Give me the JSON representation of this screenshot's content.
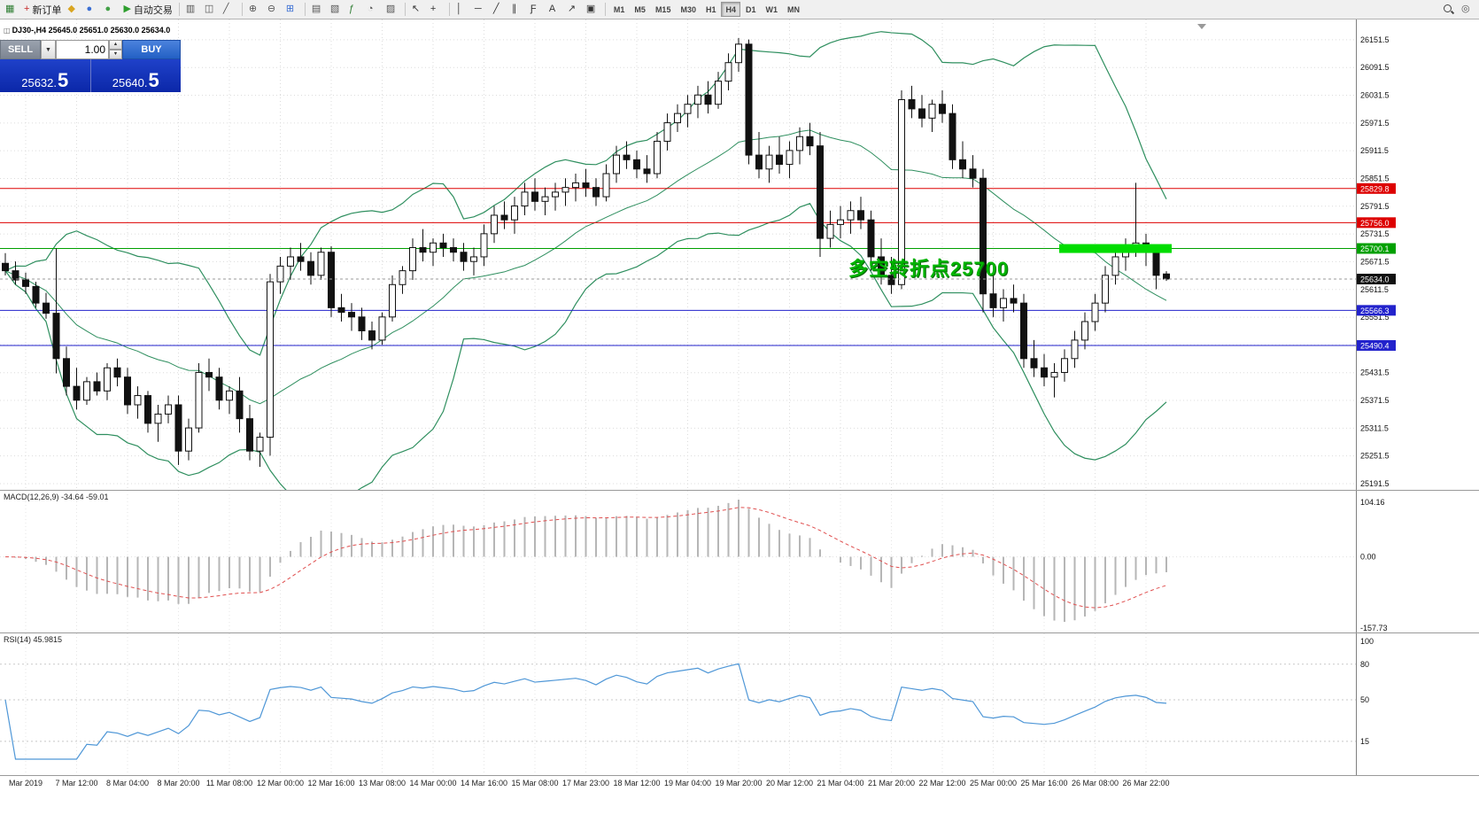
{
  "toolbar": {
    "items": [
      {
        "type": "icon",
        "name": "new-chart-icon",
        "glyph": "▦",
        "color": "#2e7d32"
      },
      {
        "type": "button",
        "name": "new-order-button",
        "glyph": "+",
        "color": "#c62828",
        "label": "新订单"
      },
      {
        "type": "icon",
        "name": "profiles-icon",
        "glyph": "◆",
        "color": "#d9a521"
      },
      {
        "type": "icon",
        "name": "accounts-icon",
        "glyph": "●",
        "color": "#3b6fd4"
      },
      {
        "type": "icon",
        "name": "community-icon",
        "glyph": "●",
        "color": "#43a047"
      },
      {
        "type": "button",
        "name": "autotrade-button",
        "glyph": "▶",
        "color": "#2e9e2e",
        "label": "自动交易"
      },
      {
        "type": "sep"
      },
      {
        "type": "icon",
        "name": "bar-chart-icon",
        "glyph": "▥",
        "color": "#555555"
      },
      {
        "type": "icon",
        "name": "candlestick-chart-icon",
        "glyph": "◫",
        "color": "#555555"
      },
      {
        "type": "icon",
        "name": "line-chart-icon",
        "glyph": "╱",
        "color": "#555555"
      },
      {
        "type": "sep"
      },
      {
        "type": "icon",
        "name": "zoom-in-icon",
        "glyph": "⊕",
        "color": "#555555"
      },
      {
        "type": "icon",
        "name": "zoom-out-icon",
        "glyph": "⊖",
        "color": "#555555"
      },
      {
        "type": "icon",
        "name": "tile-windows-icon",
        "glyph": "⊞",
        "color": "#3b6fd4"
      },
      {
        "type": "sep"
      },
      {
        "type": "icon",
        "name": "arrange-windows-icon",
        "glyph": "▤",
        "color": "#555555"
      },
      {
        "type": "icon",
        "name": "cascade-windows-icon",
        "glyph": "▧",
        "color": "#555555"
      },
      {
        "type": "icon",
        "name": "indicators-icon",
        "glyph": "ƒ",
        "color": "#2e7d32"
      },
      {
        "type": "icon",
        "name": "periods-icon",
        "glyph": "◔",
        "color": "#555555"
      },
      {
        "type": "icon",
        "name": "templates-icon",
        "glyph": "▨",
        "color": "#555555"
      },
      {
        "type": "sep"
      },
      {
        "type": "icon",
        "name": "cursor-icon",
        "glyph": "↖",
        "color": "#333333"
      },
      {
        "type": "icon",
        "name": "crosshair-icon",
        "glyph": "+",
        "color": "#333333"
      },
      {
        "type": "sep"
      },
      {
        "type": "icon",
        "name": "vertical-line-icon",
        "glyph": "│",
        "color": "#333333"
      },
      {
        "type": "icon",
        "name": "horizontal-line-icon",
        "glyph": "─",
        "color": "#333333"
      },
      {
        "type": "icon",
        "name": "trendline-icon",
        "glyph": "╱",
        "color": "#333333"
      },
      {
        "type": "icon",
        "name": "channel-icon",
        "glyph": "∥",
        "color": "#333333"
      },
      {
        "type": "icon",
        "name": "fibonacci-icon",
        "glyph": "Ƒ",
        "color": "#333333"
      },
      {
        "type": "icon",
        "name": "text-tool-icon",
        "glyph": "A",
        "color": "#333333"
      },
      {
        "type": "icon",
        "name": "arrows-tool-icon",
        "glyph": "↗",
        "color": "#333333"
      },
      {
        "type": "icon",
        "name": "shapes-tool-icon",
        "glyph": "▣",
        "color": "#333333"
      },
      {
        "type": "sep"
      },
      {
        "type": "tf-group",
        "timeframes": [
          {
            "label": "M1"
          },
          {
            "label": "M5"
          },
          {
            "label": "M15"
          },
          {
            "label": "M30"
          },
          {
            "label": "H1"
          },
          {
            "label": "H4",
            "active": true
          },
          {
            "label": "D1"
          },
          {
            "label": "W1"
          },
          {
            "label": "MN"
          }
        ]
      },
      {
        "type": "spacer"
      },
      {
        "type": "icon",
        "name": "search-icon",
        "css": "mag"
      },
      {
        "type": "icon",
        "name": "chat-icon",
        "glyph": "◎",
        "color": "#555555"
      }
    ]
  },
  "symbol_bar": {
    "icon_glyph": "◫",
    "text": "DJ30-,H4  25645.0 25651.0 25630.0 25634.0"
  },
  "trade_panel": {
    "sell_label": "SELL",
    "buy_label": "BUY",
    "dropdown_glyph": "▼",
    "volume": "1.00",
    "spin_up": "▲",
    "spin_down": "▼",
    "sell_price_main": "25632.",
    "sell_price_big": "5",
    "buy_price_main": "25640.",
    "buy_price_big": "5"
  },
  "annotation": {
    "text": "多空转折点25700",
    "color": "#00b400"
  },
  "chart_data": {
    "type": "candlestick",
    "symbol": "DJ30-",
    "timeframe": "H4",
    "y_range": [
      25180,
      26180
    ],
    "y_ticks": [
      26151.5,
      26091.5,
      26031.5,
      25971.5,
      25911.5,
      25851.5,
      25791.5,
      25731.5,
      25671.5,
      25611.5,
      25551.5,
      25491.5,
      25431.5,
      25371.5,
      25311.5,
      25251.5,
      25191.5
    ],
    "x_labels": [
      "Mar 2019",
      "7 Mar 12:00",
      "8 Mar 04:00",
      "8 Mar 20:00",
      "11 Mar 08:00",
      "12 Mar 00:00",
      "12 Mar 16:00",
      "13 Mar 08:00",
      "14 Mar 00:00",
      "14 Mar 16:00",
      "15 Mar 08:00",
      "17 Mar 23:00",
      "18 Mar 12:00",
      "19 Mar 04:00",
      "19 Mar 20:00",
      "20 Mar 12:00",
      "21 Mar 04:00",
      "21 Mar 20:00",
      "22 Mar 12:00",
      "25 Mar 00:00",
      "25 Mar 16:00",
      "26 Mar 08:00",
      "26 Mar 22:00"
    ],
    "ohlc": [
      [
        25668,
        25690,
        25642,
        25652
      ],
      [
        25652,
        25672,
        25622,
        25632
      ],
      [
        25632,
        25648,
        25602,
        25618
      ],
      [
        25618,
        25628,
        25572,
        25582
      ],
      [
        25582,
        25604,
        25548,
        25560
      ],
      [
        25560,
        25700,
        25430,
        25462
      ],
      [
        25462,
        25488,
        25382,
        25402
      ],
      [
        25402,
        25442,
        25352,
        25372
      ],
      [
        25372,
        25422,
        25362,
        25412
      ],
      [
        25412,
        25432,
        25382,
        25392
      ],
      [
        25392,
        25452,
        25372,
        25442
      ],
      [
        25442,
        25462,
        25402,
        25422
      ],
      [
        25422,
        25442,
        25342,
        25362
      ],
      [
        25362,
        25402,
        25332,
        25382
      ],
      [
        25382,
        25392,
        25302,
        25322
      ],
      [
        25322,
        25362,
        25282,
        25342
      ],
      [
        25342,
        25382,
        25322,
        25362
      ],
      [
        25362,
        25382,
        25232,
        25262
      ],
      [
        25262,
        25332,
        25242,
        25312
      ],
      [
        25312,
        25452,
        25302,
        25432
      ],
      [
        25432,
        25462,
        25392,
        25422
      ],
      [
        25422,
        25442,
        25352,
        25372
      ],
      [
        25372,
        25402,
        25342,
        25392
      ],
      [
        25392,
        25422,
        25302,
        25332
      ],
      [
        25332,
        25362,
        25242,
        25262
      ],
      [
        25262,
        25302,
        25228,
        25292
      ],
      [
        25292,
        25645,
        25252,
        25628
      ],
      [
        25628,
        25682,
        25602,
        25662
      ],
      [
        25662,
        25702,
        25632,
        25682
      ],
      [
        25682,
        25712,
        25652,
        25672
      ],
      [
        25672,
        25692,
        25622,
        25642
      ],
      [
        25642,
        25702,
        25632,
        25692
      ],
      [
        25692,
        25705,
        25552,
        25572
      ],
      [
        25572,
        25602,
        25542,
        25562
      ],
      [
        25562,
        25582,
        25522,
        25552
      ],
      [
        25552,
        25572,
        25502,
        25522
      ],
      [
        25522,
        25542,
        25482,
        25502
      ],
      [
        25502,
        25562,
        25492,
        25552
      ],
      [
        25552,
        25642,
        25542,
        25622
      ],
      [
        25622,
        25662,
        25602,
        25652
      ],
      [
        25652,
        25722,
        25632,
        25702
      ],
      [
        25702,
        25742,
        25672,
        25692
      ],
      [
        25692,
        25722,
        25662,
        25712
      ],
      [
        25712,
        25732,
        25682,
        25702
      ],
      [
        25702,
        25722,
        25672,
        25692
      ],
      [
        25692,
        25712,
        25652,
        25672
      ],
      [
        25672,
        25702,
        25642,
        25682
      ],
      [
        25682,
        25752,
        25662,
        25732
      ],
      [
        25732,
        25792,
        25712,
        25772
      ],
      [
        25772,
        25802,
        25742,
        25762
      ],
      [
        25762,
        25812,
        25732,
        25792
      ],
      [
        25792,
        25842,
        25772,
        25822
      ],
      [
        25822,
        25852,
        25782,
        25802
      ],
      [
        25802,
        25832,
        25772,
        25812
      ],
      [
        25812,
        25842,
        25782,
        25822
      ],
      [
        25822,
        25852,
        25792,
        25832
      ],
      [
        25832,
        25862,
        25802,
        25842
      ],
      [
        25842,
        25872,
        25812,
        25832
      ],
      [
        25832,
        25852,
        25792,
        25812
      ],
      [
        25812,
        25882,
        25802,
        25862
      ],
      [
        25862,
        25922,
        25842,
        25902
      ],
      [
        25902,
        25932,
        25872,
        25892
      ],
      [
        25892,
        25912,
        25852,
        25872
      ],
      [
        25872,
        25902,
        25842,
        25862
      ],
      [
        25862,
        25952,
        25852,
        25932
      ],
      [
        25932,
        25992,
        25912,
        25972
      ],
      [
        25972,
        26012,
        25952,
        25992
      ],
      [
        25992,
        26032,
        25962,
        26012
      ],
      [
        26012,
        26052,
        25982,
        26032
      ],
      [
        26032,
        26062,
        25992,
        26012
      ],
      [
        26012,
        26082,
        26002,
        26062
      ],
      [
        26062,
        26122,
        26042,
        26102
      ],
      [
        26102,
        26155,
        26082,
        26142
      ],
      [
        26142,
        26152,
        25882,
        25902
      ],
      [
        25902,
        25952,
        25852,
        25872
      ],
      [
        25872,
        25922,
        25842,
        25902
      ],
      [
        25902,
        25942,
        25862,
        25882
      ],
      [
        25882,
        25932,
        25852,
        25912
      ],
      [
        25912,
        25962,
        25882,
        25942
      ],
      [
        25942,
        25972,
        25902,
        25922
      ],
      [
        25922,
        25952,
        25682,
        25722
      ],
      [
        25722,
        25782,
        25702,
        25752
      ],
      [
        25752,
        25792,
        25722,
        25762
      ],
      [
        25762,
        25802,
        25732,
        25782
      ],
      [
        25782,
        25812,
        25742,
        25762
      ],
      [
        25762,
        25782,
        25652,
        25682
      ],
      [
        25682,
        25722,
        25622,
        25642
      ],
      [
        25642,
        25682,
        25602,
        25622
      ],
      [
        25622,
        26042,
        25612,
        26022
      ],
      [
        26022,
        26052,
        25982,
        26002
      ],
      [
        26002,
        26032,
        25962,
        25982
      ],
      [
        25982,
        26022,
        25952,
        26012
      ],
      [
        26012,
        26042,
        25972,
        25992
      ],
      [
        25992,
        26012,
        25872,
        25892
      ],
      [
        25892,
        25932,
        25852,
        25872
      ],
      [
        25872,
        25902,
        25832,
        25852
      ],
      [
        25852,
        25872,
        25562,
        25602
      ],
      [
        25602,
        25642,
        25552,
        25572
      ],
      [
        25572,
        25612,
        25542,
        25592
      ],
      [
        25592,
        25622,
        25562,
        25582
      ],
      [
        25582,
        25602,
        25442,
        25462
      ],
      [
        25462,
        25502,
        25422,
        25442
      ],
      [
        25442,
        25472,
        25402,
        25422
      ],
      [
        25422,
        25452,
        25378,
        25432
      ],
      [
        25432,
        25482,
        25412,
        25462
      ],
      [
        25462,
        25522,
        25442,
        25502
      ],
      [
        25502,
        25562,
        25482,
        25542
      ],
      [
        25542,
        25602,
        25522,
        25582
      ],
      [
        25582,
        25662,
        25562,
        25642
      ],
      [
        25642,
        25702,
        25622,
        25682
      ],
      [
        25682,
        25722,
        25652,
        25702
      ],
      [
        25702,
        25842,
        25682,
        25712
      ],
      [
        25712,
        25732,
        25662,
        25692
      ],
      [
        25692,
        25702,
        25612,
        25642
      ],
      [
        25645,
        25651,
        25630,
        25634
      ]
    ],
    "hlines": [
      {
        "price": 25829.8,
        "color": "#dd0000"
      },
      {
        "price": 25756.0,
        "color": "#dd0000"
      },
      {
        "price": 25700.1,
        "color": "#00a000"
      },
      {
        "price": 25566.3,
        "color": "#2222cc"
      },
      {
        "price": 25490.4,
        "color": "#2222cc"
      }
    ],
    "current_price": 25634.0,
    "highlight": {
      "from_index": 104,
      "to_index": 114,
      "price": 25700,
      "color": "#00dd00"
    },
    "bollinger": {
      "period": 20,
      "deviation": 2,
      "color": "#2f8f5f"
    },
    "macd": {
      "label": "MACD(12,26,9) -34.64 -59.01",
      "params": [
        12,
        26,
        9
      ],
      "value": -34.64,
      "signal_value": -59.01,
      "scale": {
        "max": "104.16",
        "zero": "0.00",
        "min": "-157.73"
      },
      "hist_color": "#b6b6b6",
      "signal_color": "#e05050"
    },
    "rsi": {
      "label": "RSI(14) 45.9815",
      "period": 14,
      "value": 45.9815,
      "levels": [
        80,
        50,
        15
      ],
      "scale_top": "100",
      "color": "#4f97d7"
    }
  }
}
